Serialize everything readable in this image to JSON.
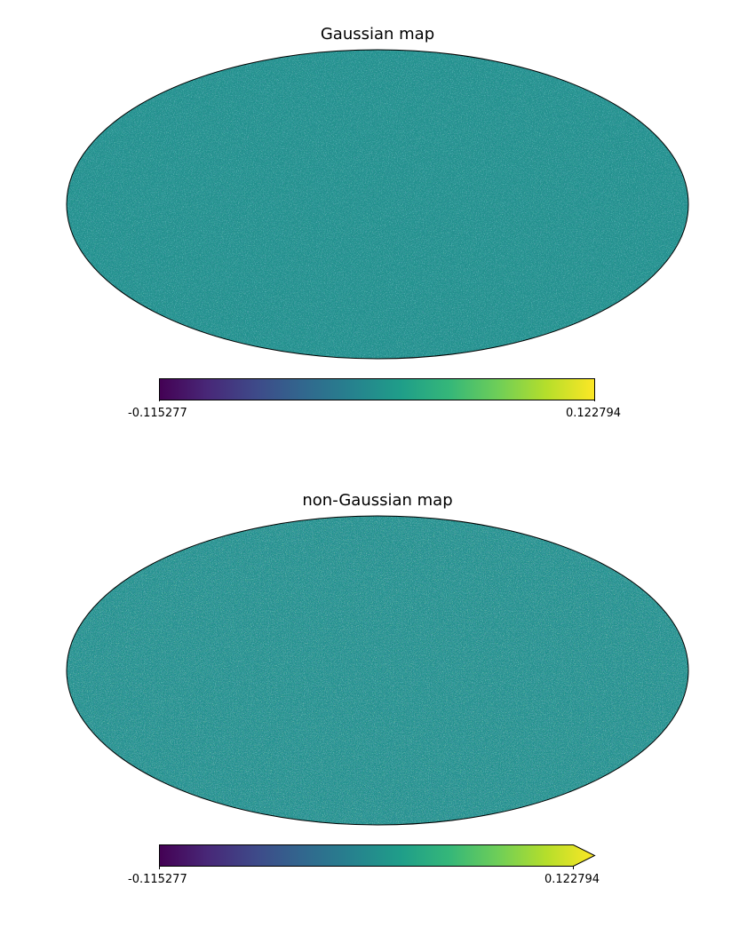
{
  "panels": [
    {
      "title": "Gaussian map",
      "colorbar": {
        "min_label": "-0.115277",
        "max_label": "0.122794",
        "extend": "none"
      }
    },
    {
      "title": "non-Gaussian map",
      "colorbar": {
        "min_label": "-0.115277",
        "max_label": "0.122794",
        "extend": "max"
      }
    }
  ],
  "projection": "mollweide",
  "colormap": "viridis",
  "colormap_stops": [
    "#440154",
    "#482878",
    "#3e4a89",
    "#31688e",
    "#26828e",
    "#1f9e89",
    "#35b779",
    "#6ece58",
    "#b5de2b",
    "#fde725"
  ],
  "map_base_color": "#21908d"
}
